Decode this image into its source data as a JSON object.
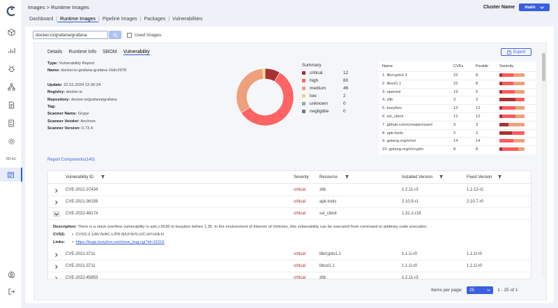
{
  "breadcrumb": "Images > Runtime Images",
  "nav": {
    "items": [
      "Dashboard",
      "Runtime Images",
      "Pipeline Images",
      "Packages",
      "Vulnerabilities"
    ],
    "active": 1
  },
  "cluster": {
    "label": "Cluster Name",
    "value": "main"
  },
  "sidebar": {
    "rbac_label": "RB AC"
  },
  "search": {
    "value": "docker.io/grafana/grafana",
    "used_images_label": "Used Images"
  },
  "tabs": [
    "Details",
    "Runtime Info",
    "SBOM",
    "Vulnerability"
  ],
  "export_label": "Export",
  "report": {
    "type": {
      "label": "Type:",
      "value": "Vulnerability Report"
    },
    "name": {
      "label": "Name:",
      "value": "docker.io-grafana-grafana-16dc2978"
    },
    "update": {
      "label": "Update:",
      "value": "22.02.2024 12:30:24"
    },
    "registry": {
      "label": "Registry:",
      "value": "docker.io"
    },
    "repository": {
      "label": "Repository:",
      "value": "docker.io/grafana/grafana"
    },
    "tag": {
      "label": "Tag:",
      "value": ""
    },
    "scanner_name": {
      "label": "Scanner Name:",
      "value": "Grype"
    },
    "scanner_vendor": {
      "label": "Scanner Vendor:",
      "value": "Anchore"
    },
    "scanner_version": {
      "label": "Scanner Version:",
      "value": "0.73.4"
    }
  },
  "summary": {
    "title": "Summary",
    "items": [
      {
        "name": "critical",
        "count": 12,
        "color": "#a83232"
      },
      {
        "name": "high",
        "count": 80,
        "color": "#ff6464"
      },
      {
        "name": "medium",
        "count": 46,
        "color": "#eda07a"
      },
      {
        "name": "low",
        "count": 2,
        "color": "#f3d27a"
      },
      {
        "name": "unknown",
        "count": 0,
        "color": "#a0a4ab"
      },
      {
        "name": "negligible",
        "count": 0,
        "color": "#6c7a89"
      }
    ]
  },
  "top_table": {
    "headers": [
      "Name",
      "CVEs",
      "Fixable",
      "Severity"
    ],
    "rows": [
      {
        "name": "1. libcrypto1.1",
        "cves": "22",
        "fixable": "8",
        "sev": [
          0.1,
          0.45,
          0.45
        ]
      },
      {
        "name": "2. libssl1.1",
        "cves": "22",
        "fixable": "8",
        "sev": [
          0.1,
          0.45,
          0.45
        ]
      },
      {
        "name": "3. openssl",
        "cves": "19",
        "fixable": "5",
        "sev": [
          0.1,
          0.5,
          0.4
        ]
      },
      {
        "name": "4. zlib",
        "cves": "3",
        "fixable": "2",
        "sev": [
          0.65,
          0.35,
          0.0
        ]
      },
      {
        "name": "5. busybox",
        "cves": "13",
        "fixable": "12",
        "sev": [
          0.1,
          0.55,
          0.35
        ]
      },
      {
        "name": "6. ssl_client",
        "cves": "13",
        "fixable": "12",
        "sev": [
          0.1,
          0.55,
          0.35
        ]
      },
      {
        "name": "7. github.com/crewjam/saml",
        "cves": "3",
        "fixable": "3",
        "sev": [
          0.35,
          0.0,
          0.65
        ]
      },
      {
        "name": "8. apk-tools",
        "cves": "2",
        "fixable": "2",
        "sev": [
          0.5,
          0.5,
          0.0
        ]
      },
      {
        "name": "9. golang.org/x/net",
        "cves": "14",
        "fixable": "14",
        "sev": [
          0.0,
          0.55,
          0.45
        ]
      },
      {
        "name": "10. golang.org/x/crypto",
        "cves": "8",
        "fixable": "8",
        "sev": [
          0.1,
          0.65,
          0.25
        ]
      }
    ]
  },
  "report_components": "Report Components(140)",
  "vuln_table": {
    "headers": [
      "Vulnerability ID",
      "Severity",
      "Resource",
      "Installed Version",
      "Fixed Version"
    ],
    "rows": [
      {
        "id": "CVE-2022-37434",
        "severity": "critical",
        "resource": "zlib",
        "installed": "1.2.11-r3",
        "fixed": "1.2.12-r2"
      },
      {
        "id": "CVE-2021-36159",
        "severity": "critical",
        "resource": "apk-tools",
        "installed": "2.10.5-r1",
        "fixed": "2.10.7-r0"
      },
      {
        "id": "CVE-2022-48174",
        "severity": "critical",
        "resource": "ssl_client",
        "installed": "1.31.1-r19",
        "fixed": ""
      },
      {
        "id": "CVE-2021-3711",
        "severity": "critical",
        "resource": "libcrypto1.1",
        "installed": "1.1.1i-r0",
        "fixed": "1.1.1l-r0"
      },
      {
        "id": "CVE-2021-3711",
        "severity": "critical",
        "resource": "libssl1.1",
        "installed": "1.1.1i-r0",
        "fixed": "1.1.1l-r0"
      },
      {
        "id": "CVE-2022-45853",
        "severity": "critical",
        "resource": "zlib",
        "installed": "1.2.11-r3",
        "fixed": ""
      }
    ],
    "expanded": {
      "description_label": "Description:",
      "description": "There is a stack overflow vulnerability in ash.c:6030 in busybox before 1.35. In the environment of Internet of Vehicles, this vulnerability can be executed from command to arbitrary code execution.",
      "cvss_label": "CVSS:",
      "cvss": "CVSS:3.1/AV:N/AC:L/PR:N/UI:N/S:U/C:H/I:H/A:H",
      "links_label": "Links:",
      "link": "https://bugs.busybox.net/show_bug.cgi?id=15216"
    }
  },
  "pagination": {
    "label": "Items per page:",
    "value": "25",
    "range": "1 - 25 of 1"
  },
  "colors": {
    "accent": "#3b5fe0"
  }
}
